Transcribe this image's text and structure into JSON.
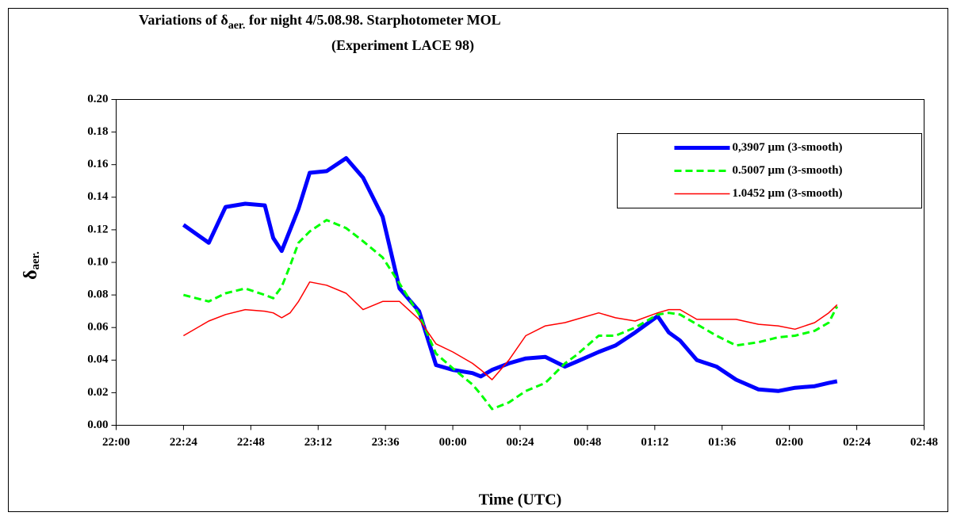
{
  "chart_data": {
    "type": "line",
    "title": {
      "pre": "Variations of δ",
      "sub": "aer.",
      "post": " for night 4/5.08.98.  Starphotometer MOL"
    },
    "subtitle": "(Experiment LACE 98)",
    "x_label": "Time (UTC)",
    "y_label": {
      "main": "δ",
      "sub": "aer."
    },
    "x": [
      "22:24",
      "22:33",
      "22:39",
      "22:46",
      "22:53",
      "22:56",
      "22:59",
      "23:02",
      "23:05",
      "23:09",
      "23:15",
      "23:22",
      "23:28",
      "23:35",
      "23:41",
      "23:48",
      "23:54",
      "00:00",
      "00:07",
      "00:10",
      "00:14",
      "00:20",
      "00:26",
      "00:33",
      "00:40",
      "00:44",
      "00:52",
      "00:58",
      "01:05",
      "01:13",
      "01:17",
      "01:21",
      "01:27",
      "01:34",
      "01:41",
      "01:49",
      "01:56",
      "02:02",
      "02:09",
      "02:14",
      "02:17"
    ],
    "series": [
      {
        "name": "0,3907 µm (3-smooth)",
        "color": "#0000ff",
        "width": 5,
        "dash": "none",
        "values": [
          0.123,
          0.112,
          0.134,
          0.136,
          0.135,
          0.115,
          0.107,
          0.12,
          0.133,
          0.155,
          0.156,
          0.164,
          0.152,
          0.128,
          0.084,
          0.07,
          0.037,
          0.034,
          0.032,
          0.03,
          0.034,
          0.038,
          0.041,
          0.042,
          0.036,
          0.039,
          0.045,
          0.049,
          0.057,
          0.067,
          0.057,
          0.052,
          0.04,
          0.036,
          0.028,
          0.022,
          0.021,
          0.023,
          0.024,
          0.026,
          0.027
        ]
      },
      {
        "name": "0.5007 µm (3-smooth)",
        "color": "#00ff00",
        "width": 3,
        "dash": "9 5",
        "values": [
          0.08,
          0.076,
          0.081,
          0.084,
          0.08,
          0.078,
          0.085,
          0.098,
          0.112,
          0.119,
          0.126,
          0.121,
          0.113,
          0.103,
          0.087,
          0.068,
          0.044,
          0.035,
          0.025,
          0.019,
          0.01,
          0.014,
          0.021,
          0.026,
          0.038,
          0.043,
          0.055,
          0.055,
          0.06,
          0.068,
          0.069,
          0.068,
          0.062,
          0.055,
          0.049,
          0.051,
          0.054,
          0.055,
          0.058,
          0.063,
          0.073
        ]
      },
      {
        "name": "1.0452 µm (3-smooth)",
        "color": "#ff0000",
        "width": 1.5,
        "dash": "none",
        "values": [
          0.055,
          0.064,
          0.068,
          0.071,
          0.07,
          0.069,
          0.066,
          0.069,
          0.076,
          0.088,
          0.086,
          0.081,
          0.071,
          0.076,
          0.076,
          0.065,
          0.05,
          0.045,
          0.038,
          0.034,
          0.028,
          0.04,
          0.055,
          0.061,
          0.063,
          0.065,
          0.069,
          0.066,
          0.064,
          0.069,
          0.071,
          0.071,
          0.065,
          0.065,
          0.065,
          0.062,
          0.061,
          0.059,
          0.063,
          0.069,
          0.074
        ]
      }
    ],
    "xlim": [
      "22:00",
      "02:48"
    ],
    "xticks": [
      "22:00",
      "22:24",
      "22:48",
      "23:12",
      "23:36",
      "00:00",
      "00:24",
      "00:48",
      "01:12",
      "01:36",
      "02:00",
      "02:24",
      "02:48"
    ],
    "ylim": [
      0,
      0.2
    ],
    "yticks": [
      {
        "value": 0,
        "label": "0.00"
      },
      {
        "value": 0.02,
        "label": "0.02"
      },
      {
        "value": 0.04,
        "label": "0.04"
      },
      {
        "value": 0.06,
        "label": "0.06"
      },
      {
        "value": 0.08,
        "label": "0.08"
      },
      {
        "value": 0.1,
        "label": "0.10"
      },
      {
        "value": 0.12,
        "label": "0.12"
      },
      {
        "value": 0.14,
        "label": "0.14"
      },
      {
        "value": 0.16,
        "label": "0.16"
      },
      {
        "value": 0.18,
        "label": "0.18"
      },
      {
        "value": 0.2,
        "label": "0.20"
      }
    ],
    "grid": false,
    "legend": "upper-right"
  }
}
